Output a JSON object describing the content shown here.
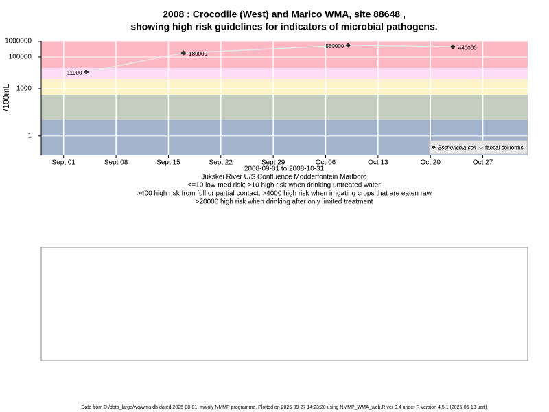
{
  "chart_data": {
    "type": "line",
    "title": [
      "2008 : Crocodile (West) and Marico WMA, site 88648 ,",
      "showing high risk guidelines for indicators of microbial pathogens."
    ],
    "subtitle": [
      "2008-09-01 to 2008-10-31",
      "Jukskei River U/S Confluence Modderfontein Marlboro",
      "<=10 low-med risk; >10 high risk when drinking untreated water",
      ">400 high risk from full or partial contact; >4000 high risk when irrigating crops that are eaten raw",
      ">20000 high risk when drinking after only limited treatment"
    ],
    "y_label": "/100mL",
    "x": [
      "2008-09-04",
      "2008-09-17",
      "2008-10-09",
      "2008-10-23"
    ],
    "series": [
      {
        "name": "Escherichia coli",
        "color": "#333333",
        "line_color": "#e6e6e6",
        "values": [
          11000,
          180000,
          550000,
          440000
        ]
      },
      {
        "name": "faecal coliforms",
        "color": "#ffffff",
        "values": [
          null,
          null,
          null,
          null
        ]
      }
    ],
    "xlim": [
      "2008-08-29",
      "2008-11-02"
    ],
    "xticks": [
      {
        "value": "2008-09-01",
        "label": "Sept 01"
      },
      {
        "value": "2008-09-08",
        "label": "Sept 08"
      },
      {
        "value": "2008-09-15",
        "label": "Sept 15"
      },
      {
        "value": "2008-09-22",
        "label": "Sept 22"
      },
      {
        "value": "2008-09-29",
        "label": "Sept 29"
      },
      {
        "value": "2008-10-06",
        "label": "Oct 06"
      },
      {
        "value": "2008-10-13",
        "label": "Oct 13"
      },
      {
        "value": "2008-10-20",
        "label": "Oct 20"
      },
      {
        "value": "2008-10-27",
        "label": "Oct 27"
      }
    ],
    "ylim": [
      0.06,
      1100000
    ],
    "log_y": true,
    "yticks": [
      1,
      1000,
      100000,
      1000000
    ],
    "thresholds": [
      10,
      400,
      4000,
      20000
    ],
    "band_colors": [
      "#a3b3cc",
      "#c3cdc0",
      "#fdf5c8",
      "#fcdcf6",
      "#fdb8c4"
    ],
    "grid": true,
    "legend": "bottom right",
    "footer": "Data from D:/data_large/wq/wms.db dated 2025-08-01, mainly NMMP programme. Plotted on 2025-09-27 14:23:20 using NMMP_WMA_web.R ver 9.4 under R version 4.5.1 (2025-06-13 ucrt)"
  }
}
